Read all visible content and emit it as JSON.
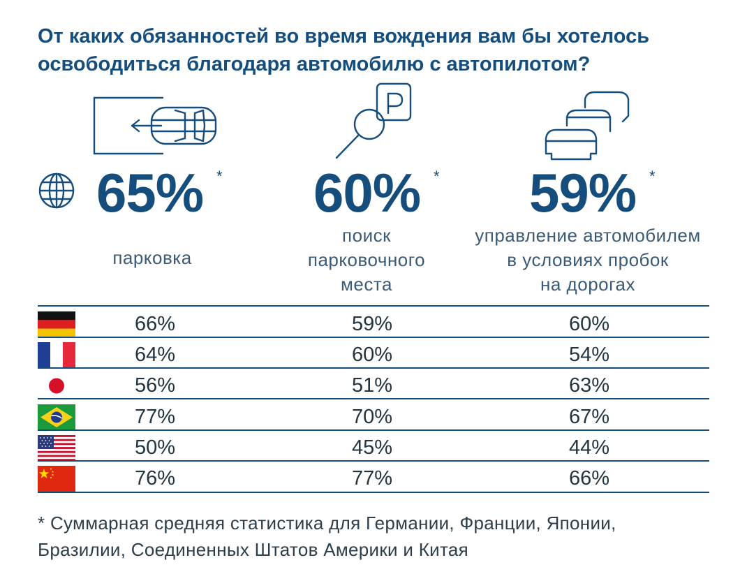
{
  "title": "От каких обязанностей во время вождения вам бы хотелось освободиться благодаря автомобилю с автопилотом?",
  "chart_data": {
    "type": "table",
    "title": "От каких обязанностей во время вождения вам бы хотелось освободиться благодаря автомобилю с автопилотом?",
    "columns": [
      {
        "total": "65%",
        "star": "*",
        "label_lines": [
          "парковка"
        ],
        "icon": "parking-car-icon"
      },
      {
        "total": "60%",
        "star": "*",
        "label_lines": [
          "поиск",
          "парковочного",
          "места"
        ],
        "icon": "parking-search-icon"
      },
      {
        "total": "59%",
        "star": "*",
        "label_lines": [
          "управление автомобилем",
          "в условиях пробок",
          "на дорогах"
        ],
        "icon": "traffic-jam-icon"
      }
    ],
    "totals": [
      65,
      60,
      59
    ],
    "rows": [
      {
        "country_flag": "germany",
        "values": [
          "66%",
          "59%",
          "60%"
        ]
      },
      {
        "country_flag": "france",
        "values": [
          "64%",
          "60%",
          "54%"
        ]
      },
      {
        "country_flag": "japan",
        "values": [
          "56%",
          "51%",
          "63%"
        ]
      },
      {
        "country_flag": "brazil",
        "values": [
          "77%",
          "70%",
          "67%"
        ]
      },
      {
        "country_flag": "usa",
        "values": [
          "50%",
          "45%",
          "44%"
        ]
      },
      {
        "country_flag": "china",
        "values": [
          "76%",
          "77%",
          "66%"
        ]
      }
    ]
  },
  "footnote_lines": [
    "* Суммарная средняя статистика для Германии, Франции, Японии,",
    "Бразилии, Соединенных Штатов Америки и Китая"
  ],
  "colors": {
    "accent": "#154d7d",
    "text": "#22343f"
  }
}
